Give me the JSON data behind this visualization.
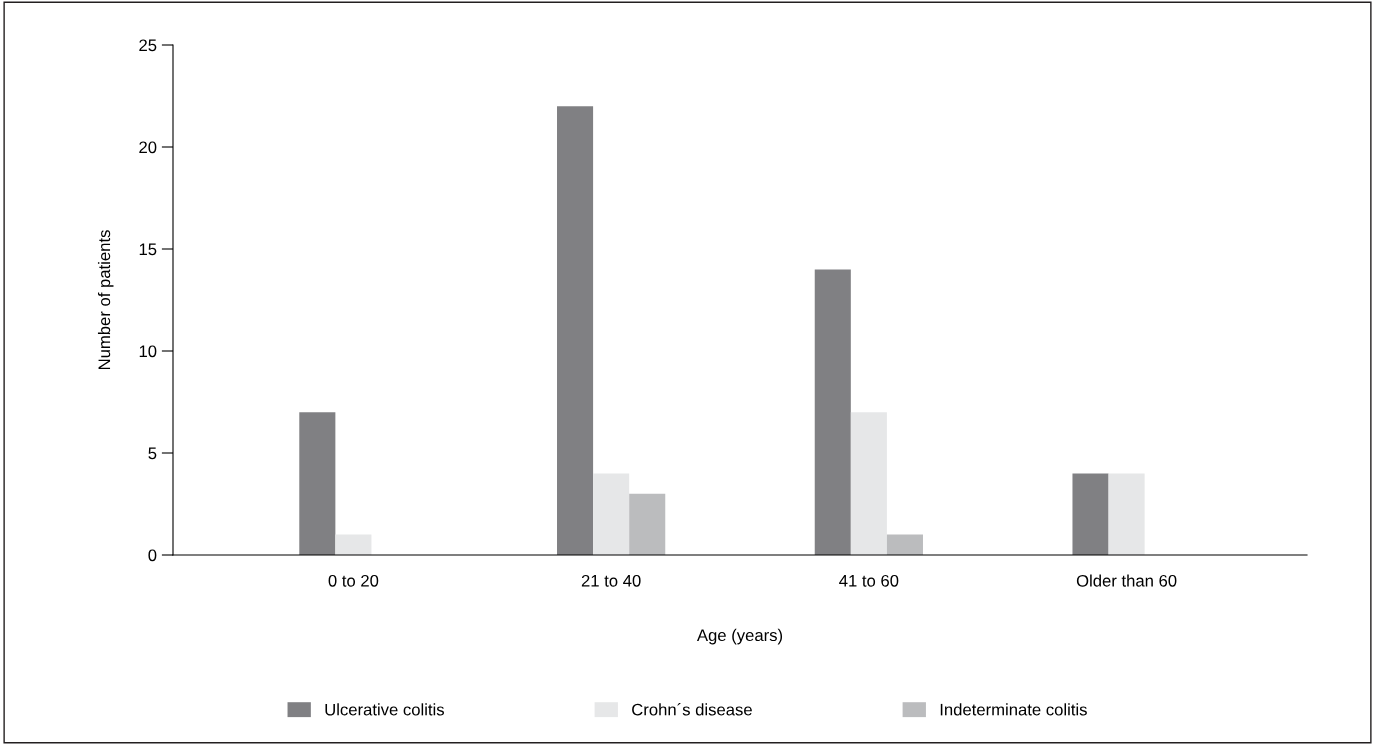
{
  "chart_data": {
    "type": "bar",
    "xlabel": "Age (years)",
    "ylabel": "Number of patients",
    "categories": [
      "0 to 20",
      "21 to 40",
      "41 to 60",
      "Older than 60"
    ],
    "series": [
      {
        "name": "Ulcerative colitis",
        "color": "#808083",
        "values": [
          7,
          22,
          14,
          4
        ]
      },
      {
        "name": "Crohn´s disease",
        "color": "#e6e7e8",
        "values": [
          1,
          4,
          7,
          4
        ]
      },
      {
        "name": "Indeterminate colitis",
        "color": "#bbbcbe",
        "values": [
          0,
          3,
          1,
          0
        ]
      }
    ],
    "ylim": [
      0,
      25
    ],
    "yticks": [
      0,
      5,
      10,
      15,
      20,
      25
    ],
    "grid": false,
    "legend": "bottom"
  }
}
